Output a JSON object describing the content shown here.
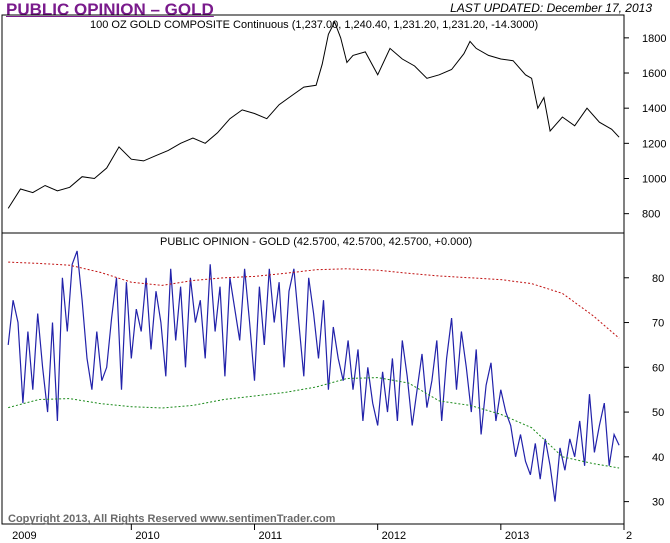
{
  "header": {
    "title": "PUBLIC OPINION – GOLD",
    "title_color": "#7a1b8c",
    "last_updated": "LAST UPDATED:  December 17, 2013"
  },
  "footer": {
    "copyright": "Copyright 2013, All Rights Reserved  www.sentimenTrader.com"
  },
  "chart_data": [
    {
      "type": "line",
      "title": "100 OZ GOLD COMPOSITE Continuous (1,237.00, 1,240.40, 1,231.20, 1,231.20, -14.3000)",
      "y_ticks": [
        800,
        1000,
        1200,
        1400,
        1600,
        1800
      ],
      "ylim": [
        690,
        1930
      ],
      "color": "#000000",
      "series": [
        {
          "x": [
            2009.0,
            2009.1,
            2009.2,
            2009.3,
            2009.4,
            2009.5,
            2009.6,
            2009.7,
            2009.8,
            2009.9,
            2010.0,
            2010.1,
            2010.2,
            2010.3,
            2010.4,
            2010.5,
            2010.6,
            2010.7,
            2010.8,
            2010.9,
            2011.0,
            2011.1,
            2011.2,
            2011.3,
            2011.4,
            2011.5,
            2011.55,
            2011.6,
            2011.65,
            2011.7,
            2011.75,
            2011.8,
            2011.9,
            2012.0,
            2012.1,
            2012.2,
            2012.3,
            2012.4,
            2012.5,
            2012.6,
            2012.7,
            2012.75,
            2012.8,
            2012.9,
            2013.0,
            2013.1,
            2013.2,
            2013.25,
            2013.3,
            2013.35,
            2013.4,
            2013.5,
            2013.6,
            2013.7,
            2013.8,
            2013.9,
            2013.96
          ],
          "values": [
            830,
            940,
            920,
            960,
            930,
            950,
            1010,
            1000,
            1060,
            1180,
            1110,
            1100,
            1130,
            1160,
            1200,
            1230,
            1200,
            1260,
            1340,
            1390,
            1370,
            1340,
            1420,
            1470,
            1520,
            1530,
            1650,
            1820,
            1890,
            1800,
            1660,
            1700,
            1720,
            1590,
            1740,
            1680,
            1640,
            1570,
            1590,
            1620,
            1710,
            1780,
            1740,
            1700,
            1680,
            1670,
            1590,
            1570,
            1400,
            1460,
            1270,
            1350,
            1300,
            1400,
            1320,
            1280,
            1235
          ]
        }
      ]
    },
    {
      "type": "line",
      "title": "PUBLIC OPINION - GOLD (42.5700, 42.5700, 42.5700, +0.000)",
      "y_ticks": [
        30,
        40,
        50,
        60,
        70,
        80
      ],
      "ylim": [
        25,
        90
      ],
      "xlabel_ticks": [
        "2009",
        "2010",
        "2011",
        "2012",
        "2013",
        "2"
      ],
      "x_tick_values": [
        2009,
        2010,
        2011,
        2012,
        2013,
        2014
      ],
      "xlim": [
        2008.95,
        2014.0
      ],
      "series": [
        {
          "color": "#2222aa",
          "x": [
            2009.0,
            2009.04,
            2009.08,
            2009.12,
            2009.16,
            2009.2,
            2009.24,
            2009.28,
            2009.32,
            2009.36,
            2009.4,
            2009.44,
            2009.48,
            2009.52,
            2009.56,
            2009.6,
            2009.64,
            2009.68,
            2009.72,
            2009.76,
            2009.8,
            2009.84,
            2009.88,
            2009.92,
            2009.96,
            2010.0,
            2010.04,
            2010.08,
            2010.12,
            2010.16,
            2010.2,
            2010.24,
            2010.28,
            2010.32,
            2010.36,
            2010.4,
            2010.44,
            2010.48,
            2010.52,
            2010.56,
            2010.6,
            2010.64,
            2010.68,
            2010.72,
            2010.76,
            2010.8,
            2010.84,
            2010.88,
            2010.92,
            2010.96,
            2011.0,
            2011.04,
            2011.08,
            2011.12,
            2011.16,
            2011.2,
            2011.24,
            2011.28,
            2011.32,
            2011.36,
            2011.4,
            2011.44,
            2011.48,
            2011.52,
            2011.56,
            2011.6,
            2011.64,
            2011.68,
            2011.72,
            2011.76,
            2011.8,
            2011.84,
            2011.88,
            2011.92,
            2011.96,
            2012.0,
            2012.04,
            2012.08,
            2012.12,
            2012.16,
            2012.2,
            2012.24,
            2012.28,
            2012.32,
            2012.36,
            2012.4,
            2012.44,
            2012.48,
            2012.52,
            2012.56,
            2012.6,
            2012.64,
            2012.68,
            2012.72,
            2012.76,
            2012.8,
            2012.84,
            2012.88,
            2012.92,
            2012.96,
            2013.0,
            2013.04,
            2013.08,
            2013.12,
            2013.16,
            2013.2,
            2013.24,
            2013.28,
            2013.32,
            2013.36,
            2013.4,
            2013.44,
            2013.48,
            2013.52,
            2013.56,
            2013.6,
            2013.64,
            2013.68,
            2013.72,
            2013.76,
            2013.8,
            2013.84,
            2013.88,
            2013.92,
            2013.96
          ],
          "values": [
            65,
            75,
            70,
            52,
            68,
            55,
            72,
            60,
            50,
            70,
            48,
            80,
            68,
            83,
            86,
            75,
            62,
            55,
            68,
            57,
            60,
            71,
            80,
            55,
            79,
            62,
            73,
            68,
            80,
            64,
            77,
            70,
            58,
            82,
            66,
            78,
            60,
            80,
            70,
            75,
            62,
            83,
            68,
            78,
            58,
            80,
            73,
            66,
            82,
            70,
            57,
            78,
            65,
            82,
            70,
            79,
            60,
            77,
            82,
            70,
            58,
            80,
            72,
            62,
            75,
            55,
            69,
            62,
            57,
            66,
            55,
            64,
            48,
            60,
            52,
            47,
            59,
            50,
            62,
            48,
            66,
            58,
            47,
            55,
            63,
            51,
            57,
            66,
            48,
            62,
            71,
            55,
            68,
            60,
            50,
            64,
            45,
            56,
            61,
            48,
            55,
            50,
            47,
            40,
            45,
            39,
            36,
            43,
            35,
            44,
            38,
            30,
            42,
            37,
            44,
            40,
            48,
            38,
            54,
            41,
            47,
            52,
            38,
            45,
            42.57
          ]
        },
        {
          "color": "#c01010",
          "dashed": true,
          "x": [
            2009.0,
            2009.25,
            2009.5,
            2009.75,
            2010.0,
            2010.25,
            2010.5,
            2010.75,
            2011.0,
            2011.25,
            2011.5,
            2011.75,
            2012.0,
            2012.25,
            2012.5,
            2012.75,
            2013.0,
            2013.25,
            2013.5,
            2013.75,
            2013.96
          ],
          "values": [
            83.5,
            83.2,
            82.8,
            81.2,
            79.0,
            78.3,
            79.4,
            80.0,
            80.3,
            81.0,
            81.8,
            82.0,
            81.7,
            81.0,
            80.4,
            80.0,
            79.6,
            78.7,
            76.5,
            71.5,
            66.5
          ]
        },
        {
          "color": "#1a8a1a",
          "dashed": true,
          "x": [
            2009.0,
            2009.25,
            2009.5,
            2009.75,
            2010.0,
            2010.25,
            2010.5,
            2010.75,
            2011.0,
            2011.25,
            2011.5,
            2011.75,
            2012.0,
            2012.25,
            2012.5,
            2012.75,
            2013.0,
            2013.25,
            2013.5,
            2013.75,
            2013.96
          ],
          "values": [
            51.0,
            52.8,
            53.0,
            51.9,
            51.2,
            50.9,
            51.5,
            52.8,
            53.6,
            54.4,
            55.6,
            57.5,
            57.7,
            56.5,
            52.5,
            51.5,
            49.5,
            46.5,
            40.0,
            38.5,
            37.5
          ]
        }
      ]
    }
  ]
}
